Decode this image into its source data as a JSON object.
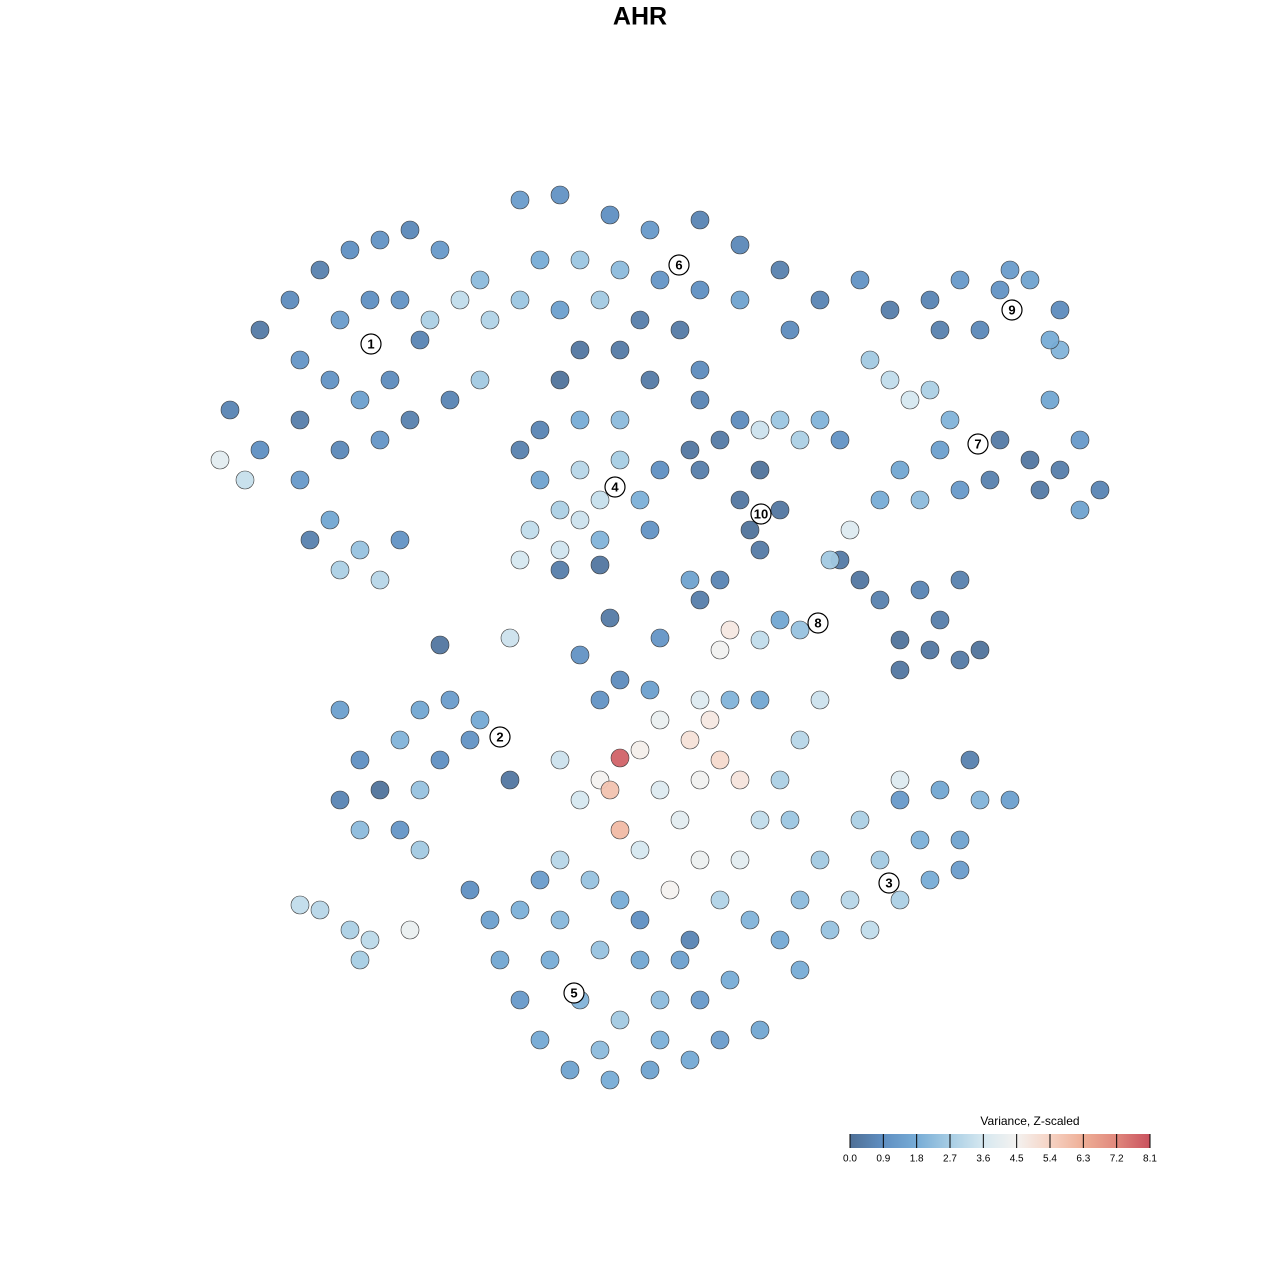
{
  "chart_data": {
    "type": "scatter",
    "title": "AHR",
    "xlim": [
      0,
      1280
    ],
    "ylim": [
      1280,
      0
    ],
    "points": [
      [
        230,
        410,
        0.6
      ],
      [
        260,
        330,
        0.3
      ],
      [
        290,
        300,
        0.8
      ],
      [
        320,
        270,
        0.5
      ],
      [
        350,
        250,
        0.9
      ],
      [
        380,
        240,
        1.0
      ],
      [
        410,
        230,
        0.7
      ],
      [
        440,
        250,
        1.2
      ],
      [
        300,
        360,
        1.1
      ],
      [
        340,
        320,
        1.3
      ],
      [
        370,
        300,
        0.9
      ],
      [
        400,
        300,
        1.0
      ],
      [
        420,
        340,
        0.6
      ],
      [
        330,
        380,
        1.0
      ],
      [
        360,
        400,
        1.4
      ],
      [
        390,
        380,
        0.8
      ],
      [
        300,
        420,
        0.4
      ],
      [
        260,
        450,
        0.9
      ],
      [
        300,
        480,
        1.2
      ],
      [
        340,
        450,
        0.7
      ],
      [
        380,
        440,
        1.1
      ],
      [
        410,
        420,
        0.5
      ],
      [
        330,
        520,
        1.6
      ],
      [
        360,
        550,
        2.4
      ],
      [
        340,
        570,
        2.8
      ],
      [
        380,
        580,
        3.0
      ],
      [
        400,
        540,
        1.0
      ],
      [
        310,
        540,
        0.5
      ],
      [
        220,
        460,
        4.0
      ],
      [
        245,
        480,
        3.3
      ],
      [
        450,
        400,
        0.6
      ],
      [
        480,
        380,
        2.6
      ],
      [
        430,
        320,
        2.8
      ],
      [
        460,
        300,
        3.2
      ],
      [
        490,
        320,
        2.9
      ],
      [
        520,
        300,
        2.5
      ],
      [
        480,
        280,
        2.2
      ],
      [
        520,
        200,
        1.3
      ],
      [
        560,
        195,
        1.0
      ],
      [
        610,
        215,
        0.9
      ],
      [
        650,
        230,
        1.2
      ],
      [
        700,
        220,
        0.6
      ],
      [
        740,
        245,
        0.7
      ],
      [
        780,
        270,
        0.5
      ],
      [
        820,
        300,
        0.6
      ],
      [
        540,
        260,
        1.8
      ],
      [
        580,
        260,
        2.5
      ],
      [
        620,
        270,
        2.2
      ],
      [
        660,
        280,
        1.1
      ],
      [
        700,
        290,
        0.9
      ],
      [
        740,
        300,
        1.5
      ],
      [
        790,
        330,
        0.8
      ],
      [
        560,
        310,
        1.4
      ],
      [
        600,
        300,
        2.6
      ],
      [
        640,
        320,
        0.4
      ],
      [
        680,
        330,
        0.3
      ],
      [
        700,
        370,
        0.8
      ],
      [
        700,
        400,
        0.6
      ],
      [
        580,
        350,
        0.2
      ],
      [
        620,
        350,
        0.3
      ],
      [
        560,
        380,
        0.1
      ],
      [
        650,
        380,
        0.3
      ],
      [
        860,
        280,
        1.0
      ],
      [
        520,
        450,
        0.5
      ],
      [
        540,
        480,
        1.5
      ],
      [
        560,
        510,
        2.8
      ],
      [
        580,
        470,
        3.0
      ],
      [
        600,
        500,
        3.3
      ],
      [
        620,
        460,
        2.7
      ],
      [
        640,
        500,
        1.9
      ],
      [
        650,
        530,
        1.0
      ],
      [
        530,
        530,
        3.2
      ],
      [
        560,
        550,
        3.5
      ],
      [
        600,
        540,
        2.0
      ],
      [
        620,
        420,
        2.2
      ],
      [
        580,
        420,
        1.8
      ],
      [
        540,
        430,
        0.6
      ],
      [
        560,
        570,
        0.4
      ],
      [
        600,
        565,
        0.2
      ],
      [
        660,
        470,
        0.9
      ],
      [
        520,
        560,
        3.6
      ],
      [
        580,
        520,
        3.4
      ],
      [
        690,
        450,
        0.2
      ],
      [
        720,
        440,
        0.3
      ],
      [
        760,
        470,
        0.1
      ],
      [
        780,
        510,
        0.2
      ],
      [
        750,
        530,
        0.1
      ],
      [
        760,
        550,
        0.3
      ],
      [
        740,
        500,
        0.2
      ],
      [
        700,
        470,
        0.4
      ],
      [
        800,
        440,
        2.8
      ],
      [
        780,
        420,
        2.5
      ],
      [
        760,
        430,
        3.4
      ],
      [
        870,
        360,
        2.6
      ],
      [
        890,
        380,
        3.2
      ],
      [
        910,
        400,
        3.6
      ],
      [
        930,
        390,
        2.8
      ],
      [
        950,
        420,
        2.0
      ],
      [
        1000,
        440,
        0.3
      ],
      [
        1030,
        460,
        0.2
      ],
      [
        1060,
        470,
        0.4
      ],
      [
        1100,
        490,
        0.6
      ],
      [
        1080,
        510,
        1.5
      ],
      [
        990,
        480,
        0.5
      ],
      [
        1040,
        490,
        0.3
      ],
      [
        900,
        470,
        1.6
      ],
      [
        920,
        500,
        2.2
      ],
      [
        880,
        500,
        1.8
      ],
      [
        940,
        450,
        1.4
      ],
      [
        960,
        490,
        1.2
      ],
      [
        840,
        440,
        1.0
      ],
      [
        820,
        420,
        2.0
      ],
      [
        1060,
        350,
        2.0
      ],
      [
        1080,
        440,
        1.2
      ],
      [
        1050,
        400,
        1.6
      ],
      [
        890,
        310,
        0.4
      ],
      [
        930,
        300,
        0.6
      ],
      [
        960,
        280,
        1.2
      ],
      [
        1000,
        290,
        1.0
      ],
      [
        1030,
        280,
        1.5
      ],
      [
        1060,
        310,
        0.8
      ],
      [
        1050,
        340,
        1.8
      ],
      [
        980,
        330,
        0.7
      ],
      [
        940,
        330,
        0.5
      ],
      [
        1010,
        270,
        1.3
      ],
      [
        840,
        560,
        0.3
      ],
      [
        860,
        580,
        0.2
      ],
      [
        880,
        600,
        0.5
      ],
      [
        900,
        640,
        0.1
      ],
      [
        930,
        650,
        0.2
      ],
      [
        960,
        660,
        0.3
      ],
      [
        980,
        650,
        0.1
      ],
      [
        940,
        620,
        0.4
      ],
      [
        900,
        670,
        0.2
      ],
      [
        920,
        590,
        0.6
      ],
      [
        960,
        580,
        0.5
      ],
      [
        850,
        530,
        3.8
      ],
      [
        830,
        560,
        2.6
      ],
      [
        780,
        620,
        1.6
      ],
      [
        760,
        640,
        3.2
      ],
      [
        720,
        650,
        4.4
      ],
      [
        730,
        630,
        4.8
      ],
      [
        800,
        630,
        2.4
      ],
      [
        340,
        710,
        1.4
      ],
      [
        360,
        760,
        0.9
      ],
      [
        340,
        800,
        0.6
      ],
      [
        380,
        790,
        0.1
      ],
      [
        400,
        740,
        2.0
      ],
      [
        420,
        710,
        1.6
      ],
      [
        450,
        700,
        1.3
      ],
      [
        480,
        720,
        1.7
      ],
      [
        420,
        790,
        2.4
      ],
      [
        440,
        760,
        0.9
      ],
      [
        400,
        830,
        1.1
      ],
      [
        360,
        830,
        2.2
      ],
      [
        510,
        780,
        0.2
      ],
      [
        470,
        740,
        1.0
      ],
      [
        420,
        850,
        2.6
      ],
      [
        300,
        905,
        3.2
      ],
      [
        320,
        910,
        3.0
      ],
      [
        350,
        930,
        2.8
      ],
      [
        370,
        940,
        3.1
      ],
      [
        360,
        960,
        2.7
      ],
      [
        410,
        930,
        4.2
      ],
      [
        560,
        760,
        3.4
      ],
      [
        580,
        800,
        3.6
      ],
      [
        600,
        780,
        4.5
      ],
      [
        610,
        790,
        5.8
      ],
      [
        620,
        830,
        6.0
      ],
      [
        640,
        750,
        4.6
      ],
      [
        660,
        720,
        4.2
      ],
      [
        690,
        740,
        5.0
      ],
      [
        710,
        720,
        4.8
      ],
      [
        720,
        760,
        5.2
      ],
      [
        700,
        780,
        4.4
      ],
      [
        740,
        780,
        4.9
      ],
      [
        660,
        790,
        3.8
      ],
      [
        680,
        820,
        4.0
      ],
      [
        640,
        850,
        3.6
      ],
      [
        700,
        860,
        4.3
      ],
      [
        670,
        890,
        4.5
      ],
      [
        740,
        860,
        4.0
      ],
      [
        760,
        820,
        3.2
      ],
      [
        780,
        780,
        2.8
      ],
      [
        800,
        740,
        3.0
      ],
      [
        820,
        700,
        3.4
      ],
      [
        600,
        700,
        1.0
      ],
      [
        620,
        680,
        0.8
      ],
      [
        650,
        690,
        1.4
      ],
      [
        700,
        700,
        3.8
      ],
      [
        560,
        860,
        3.0
      ],
      [
        590,
        880,
        2.4
      ],
      [
        620,
        900,
        1.8
      ],
      [
        720,
        900,
        2.9
      ],
      [
        750,
        920,
        2.0
      ],
      [
        730,
        700,
        2.0
      ],
      [
        760,
        700,
        1.6
      ],
      [
        620,
        758,
        7.8
      ],
      [
        900,
        800,
        1.2
      ],
      [
        940,
        790,
        1.6
      ],
      [
        980,
        800,
        2.0
      ],
      [
        1010,
        800,
        1.4
      ],
      [
        920,
        840,
        1.9
      ],
      [
        960,
        840,
        1.5
      ],
      [
        880,
        860,
        2.6
      ],
      [
        850,
        900,
        3.0
      ],
      [
        870,
        930,
        3.2
      ],
      [
        900,
        900,
        2.8
      ],
      [
        930,
        880,
        1.8
      ],
      [
        960,
        870,
        1.3
      ],
      [
        820,
        860,
        2.6
      ],
      [
        800,
        900,
        2.2
      ],
      [
        780,
        940,
        1.7
      ],
      [
        800,
        970,
        1.8
      ],
      [
        830,
        930,
        2.4
      ],
      [
        900,
        780,
        3.8
      ],
      [
        970,
        760,
        0.5
      ],
      [
        860,
        820,
        2.8
      ],
      [
        790,
        820,
        2.5
      ],
      [
        490,
        920,
        1.4
      ],
      [
        500,
        960,
        1.6
      ],
      [
        520,
        1000,
        1.2
      ],
      [
        540,
        1040,
        1.7
      ],
      [
        570,
        1070,
        1.5
      ],
      [
        610,
        1080,
        1.8
      ],
      [
        650,
        1070,
        1.5
      ],
      [
        690,
        1060,
        1.7
      ],
      [
        720,
        1040,
        1.3
      ],
      [
        760,
        1030,
        1.6
      ],
      [
        700,
        1000,
        1.2
      ],
      [
        660,
        1000,
        2.2
      ],
      [
        620,
        1020,
        2.6
      ],
      [
        580,
        1000,
        2.0
      ],
      [
        550,
        960,
        1.8
      ],
      [
        600,
        950,
        2.4
      ],
      [
        640,
        960,
        1.6
      ],
      [
        680,
        960,
        1.4
      ],
      [
        520,
        910,
        1.9
      ],
      [
        560,
        920,
        2.1
      ],
      [
        640,
        920,
        0.9
      ],
      [
        690,
        940,
        0.6
      ],
      [
        730,
        980,
        1.8
      ],
      [
        600,
        1050,
        2.2
      ],
      [
        660,
        1040,
        1.9
      ],
      [
        540,
        880,
        1.3
      ],
      [
        470,
        890,
        0.9
      ],
      [
        440,
        645,
        0.2
      ],
      [
        510,
        638,
        3.4
      ],
      [
        580,
        655,
        1.0
      ],
      [
        610,
        618,
        0.3
      ],
      [
        660,
        638,
        1.1
      ],
      [
        700,
        600,
        0.4
      ],
      [
        720,
        580,
        0.6
      ],
      [
        690,
        580,
        1.5
      ],
      [
        740,
        420,
        0.8
      ]
    ],
    "annotations": [
      {
        "label": "1",
        "x": 371,
        "y": 344
      },
      {
        "label": "6",
        "x": 679,
        "y": 265
      },
      {
        "label": "9",
        "x": 1012,
        "y": 310
      },
      {
        "label": "7",
        "x": 978,
        "y": 444
      },
      {
        "label": "4",
        "x": 615,
        "y": 487
      },
      {
        "label": "10",
        "x": 761,
        "y": 514
      },
      {
        "label": "8",
        "x": 818,
        "y": 623
      },
      {
        "label": "2",
        "x": 500,
        "y": 737
      },
      {
        "label": "3",
        "x": 889,
        "y": 883
      },
      {
        "label": "5",
        "x": 574,
        "y": 993
      }
    ],
    "colorbar": {
      "title": "Variance, Z-scaled",
      "clim": [
        0,
        8.1
      ],
      "ticks": [
        {
          "value": 0,
          "label": "0.0"
        },
        0.9,
        1.8,
        2.7,
        3.6,
        4.5,
        5.4,
        6.3,
        7.2,
        8.1
      ],
      "colors": [
        "#4e6f96",
        "#5f8fc2",
        "#77acd6",
        "#a7cde4",
        "#d6e8f0",
        "#f4f2f0",
        "#f6d3c4",
        "#eeae96",
        "#e0877c",
        "#c9515e"
      ]
    }
  }
}
